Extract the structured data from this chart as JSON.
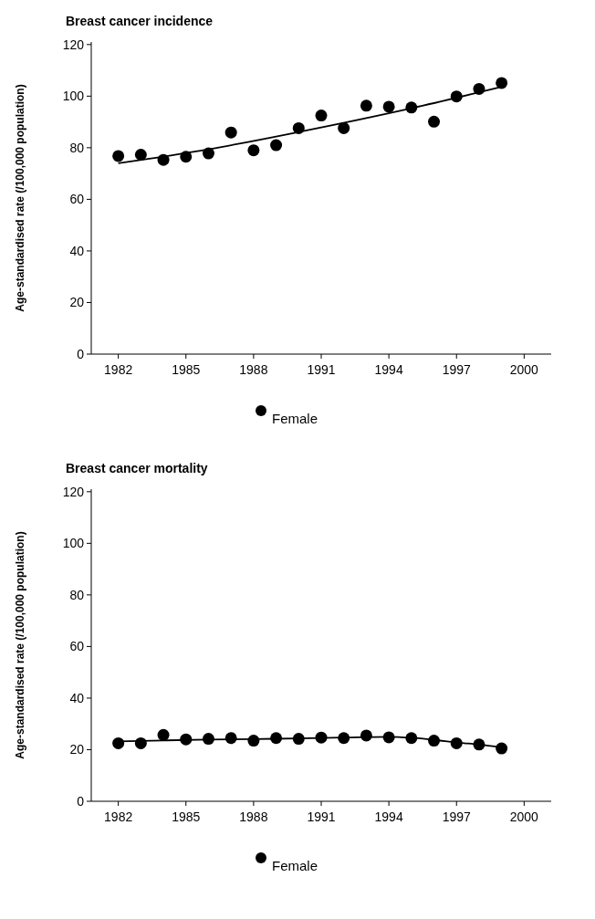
{
  "chart_data": [
    {
      "type": "scatter",
      "title": "Breast cancer incidence",
      "ylabel": "Age-standardised rate (/100,000 population)",
      "xlim": [
        1980.8,
        2001.2
      ],
      "xticks": [
        1982,
        1985,
        1988,
        1991,
        1994,
        1997,
        2000
      ],
      "ylim": [
        0,
        121
      ],
      "yticks": [
        0,
        20,
        40,
        60,
        80,
        100,
        120
      ],
      "legend": "bottom",
      "marker": "circle",
      "series": [
        {
          "name": "Female",
          "color": "#000000",
          "x": [
            1982,
            1983,
            1984,
            1985,
            1986,
            1987,
            1988,
            1989,
            1990,
            1991,
            1992,
            1993,
            1994,
            1995,
            1996,
            1997,
            1998,
            1999
          ],
          "values": [
            76.8,
            77.3,
            75.3,
            76.5,
            77.8,
            85.9,
            79,
            81,
            87.6,
            92.5,
            87.6,
            96.3,
            95.9,
            95.6,
            90.1,
            99.9,
            102.8,
            105.1
          ]
        },
        {
          "type": "line",
          "color": "#000000",
          "marker": "none",
          "x": [
            1982,
            1986,
            1990,
            1995,
            1999
          ],
          "values": [
            74,
            79.4,
            86.1,
            95.3,
            103.6
          ]
        }
      ]
    },
    {
      "type": "scatter",
      "title": "Breast cancer mortality",
      "ylabel": "Age-standardised rate (/100,000 population)",
      "xlim": [
        1980.8,
        2001.2
      ],
      "xticks": [
        1982,
        1985,
        1988,
        1991,
        1994,
        1997,
        2000
      ],
      "ylim": [
        0,
        121
      ],
      "yticks": [
        0,
        20,
        40,
        60,
        80,
        100,
        120
      ],
      "legend": "bottom",
      "marker": "circle",
      "series": [
        {
          "name": "Female",
          "color": "#000000",
          "x": [
            1982,
            1983,
            1984,
            1985,
            1986,
            1987,
            1988,
            1989,
            1990,
            1991,
            1992,
            1993,
            1994,
            1995,
            1996,
            1997,
            1998,
            1999
          ],
          "values": [
            22.5,
            22.5,
            25.7,
            24,
            24.2,
            24.5,
            23.5,
            24.5,
            24.2,
            24.7,
            24.5,
            25.5,
            24.8,
            24.5,
            23.5,
            22.5,
            22,
            20.5
          ]
        },
        {
          "type": "line",
          "color": "#000000",
          "marker": "none",
          "x": [
            1982,
            1984,
            1986,
            1988,
            1990,
            1992,
            1994,
            1995,
            1996,
            1997,
            1998,
            1999
          ],
          "values": [
            23.2,
            23.6,
            23.9,
            24.1,
            24.4,
            24.7,
            25,
            24.6,
            23.8,
            22.8,
            22,
            21
          ]
        }
      ]
    }
  ]
}
